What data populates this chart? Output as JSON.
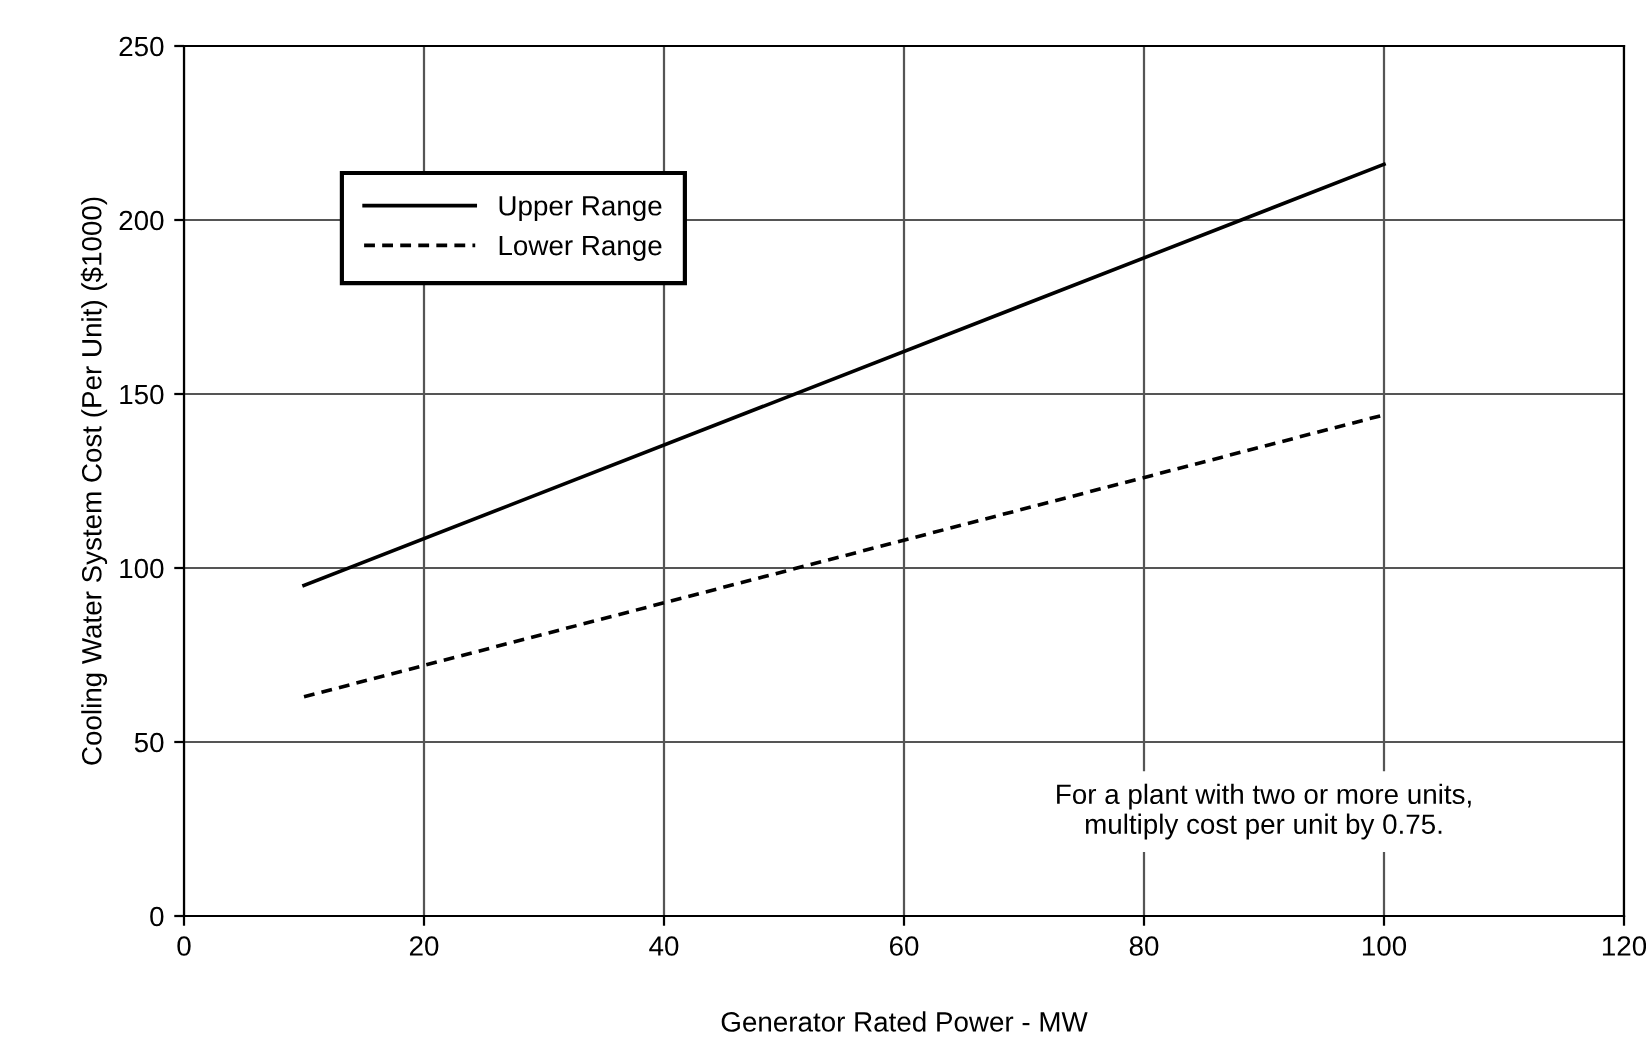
{
  "chart_data": {
    "type": "line",
    "xlabel": "Generator Rated Power - MW",
    "ylabel": "Cooling Water System Cost (Per Unit) ($1000)",
    "series": [
      {
        "name": "Upper Range",
        "color": "#000000",
        "line_style": "solid",
        "values": [
          95,
          216
        ]
      },
      {
        "name": "Lower Range",
        "color": "#000000",
        "line_style": "dashed",
        "values": [
          63,
          144
        ]
      }
    ],
    "x": [
      10,
      100
    ],
    "xlim": [
      0,
      120
    ],
    "xticks": [
      0,
      20,
      40,
      60,
      80,
      100,
      120
    ],
    "ylim": [
      0,
      250
    ],
    "yticks": [
      0,
      50,
      100,
      150,
      200,
      250
    ],
    "grid": true,
    "legend": "top left",
    "annotations": [
      "For a plant with two or more units,\nmultiply cost per unit by 0.75."
    ]
  }
}
